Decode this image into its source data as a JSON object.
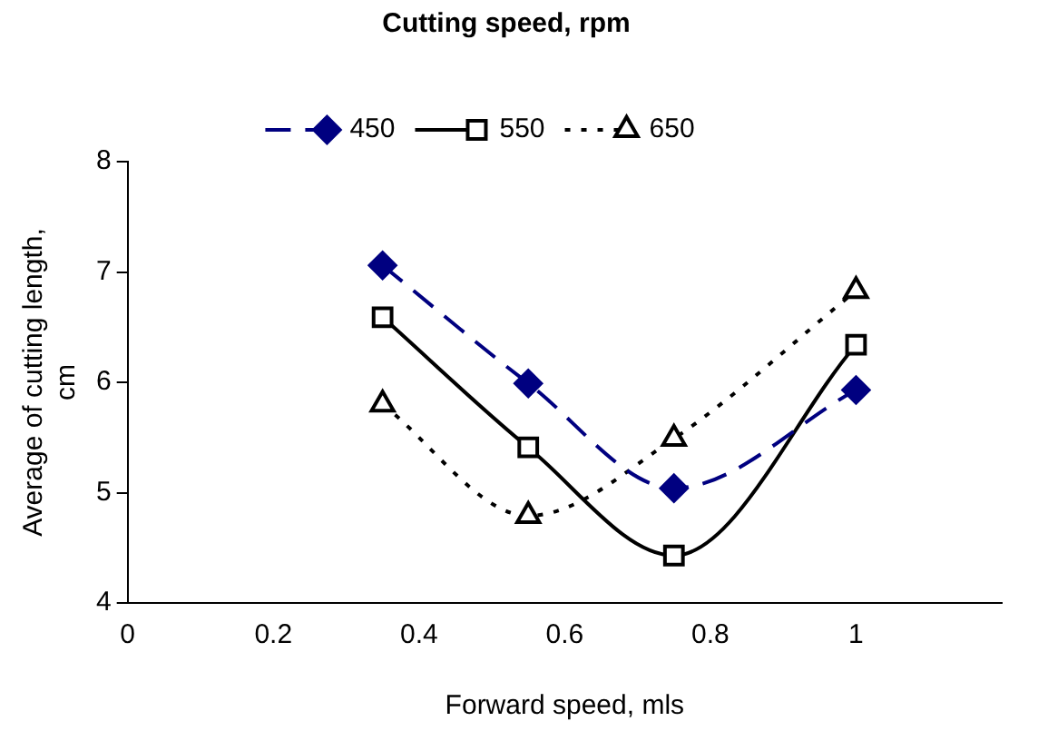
{
  "chart_data": {
    "type": "line",
    "xlabel": "Forward speed, mls",
    "ylabel": "Average of cutting length, cm",
    "legend_title": "Cutting speed, rpm",
    "legend": "top",
    "grid": false,
    "x": [
      0.35,
      0.55,
      0.75,
      1
    ],
    "xlim": [
      0,
      1.2
    ],
    "xticks": [
      0,
      0.2,
      0.4,
      0.6,
      0.8,
      1
    ],
    "ylim": [
      4,
      8
    ],
    "yticks": [
      4,
      5,
      6,
      7,
      8
    ],
    "series": [
      {
        "name": "450",
        "color": "#000080",
        "values": [
          7.06,
          5.99,
          5.04,
          5.93
        ],
        "marker": "diamond",
        "line_style": "dashed"
      },
      {
        "name": "550",
        "color": "#000000",
        "values": [
          6.59,
          5.41,
          4.43,
          6.34
        ],
        "marker": "square",
        "line_style": "solid"
      },
      {
        "name": "650",
        "color": "#000000",
        "values": [
          5.8,
          4.79,
          5.49,
          6.83
        ],
        "marker": "triangle",
        "line_style": "dotted"
      }
    ]
  }
}
